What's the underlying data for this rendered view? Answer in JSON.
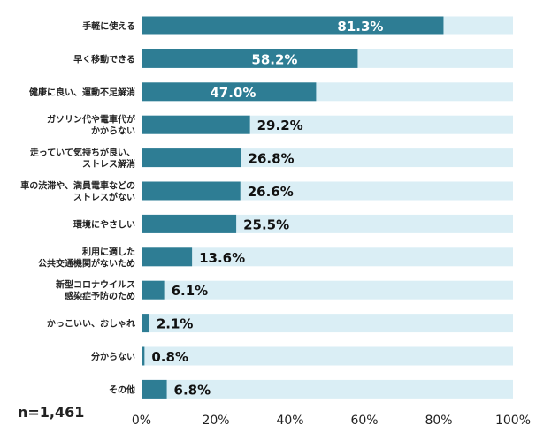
{
  "chart_data": {
    "type": "bar",
    "orientation": "horizontal",
    "categories": [
      "手軽に使える",
      "早く移動できる",
      "健康に良い、運動不足解消",
      "ガソリン代や電車代が\nかからない",
      "走っていて気持ちが良い、\nストレス解消",
      "車の渋滞や、満員電車などの\nストレスがない",
      "環境にやさしい",
      "利用に適した\n公共交通機関がないため",
      "新型コロナウイルス\n感染症予防のため",
      "かっこいい、おしゃれ",
      "分からない",
      "その他"
    ],
    "values": [
      81.3,
      58.2,
      47.0,
      29.2,
      26.8,
      26.6,
      25.5,
      13.6,
      6.1,
      2.1,
      0.8,
      6.8
    ],
    "value_labels": [
      "81.3%",
      "58.2%",
      "47.0%",
      "29.2%",
      "26.8%",
      "26.6%",
      "25.5%",
      "13.6%",
      "6.1%",
      "2.1%",
      "0.8%",
      "6.8%"
    ],
    "xlim": [
      0,
      100
    ],
    "x_ticks": [
      "0%",
      "20%",
      "40%",
      "60%",
      "80%",
      "100%"
    ],
    "sample_size_label": "n=1,461",
    "grid": false,
    "colors": {
      "bar": "#2e7d94",
      "track": "#daeef5",
      "label_on_bar": "#ffffff",
      "label_outside": "#111111"
    }
  }
}
